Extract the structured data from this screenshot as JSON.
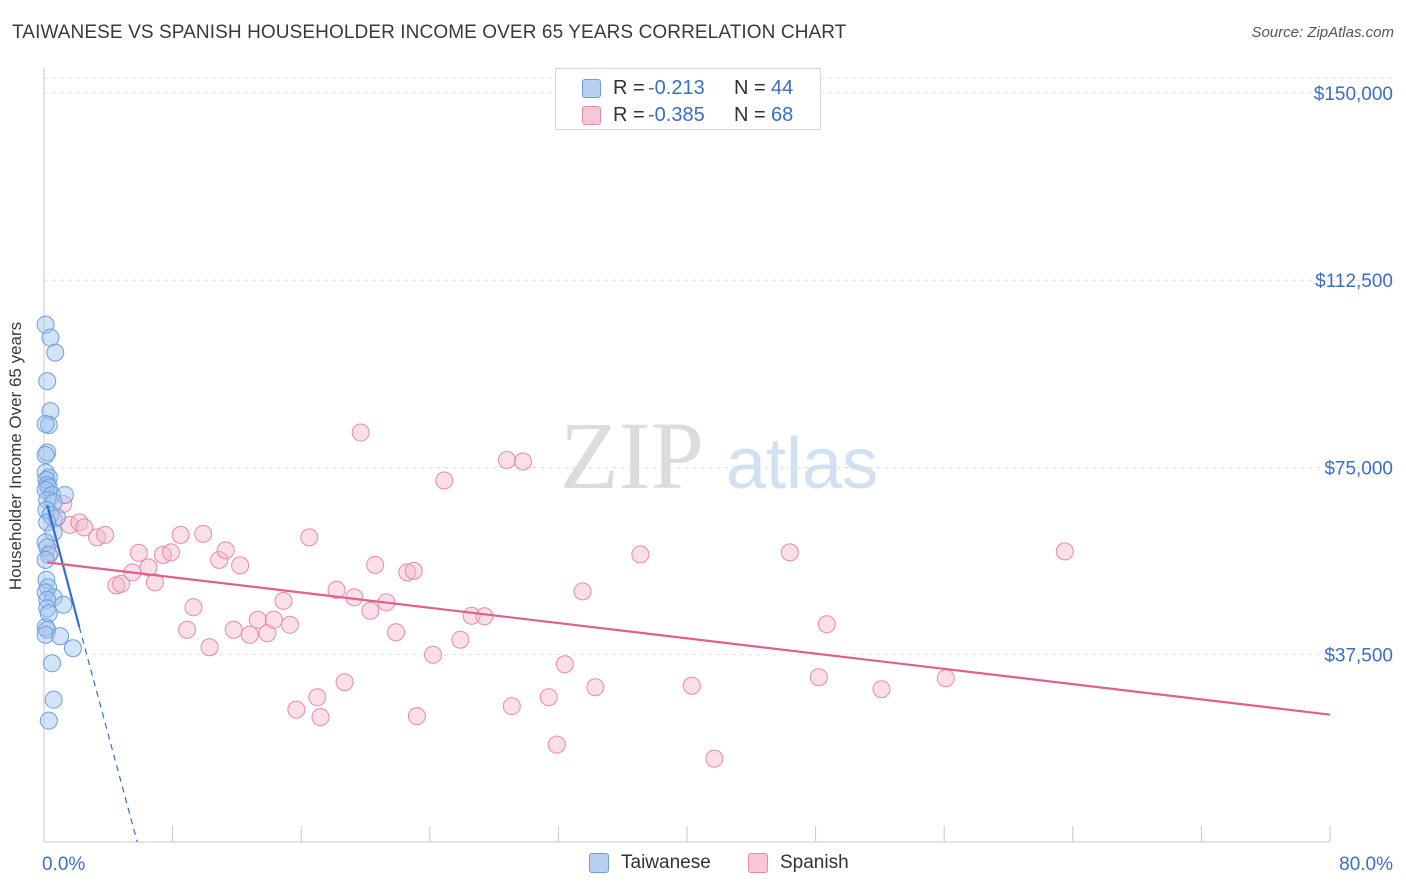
{
  "title": "TAIWANESE VS SPANISH HOUSEHOLDER INCOME OVER 65 YEARS CORRELATION CHART",
  "source": "Source: ZipAtlas.com",
  "watermark": {
    "part1": "ZIP",
    "part2": "atlas"
  },
  "legend_stats": [
    {
      "r_label": "R =",
      "r_value": "-0.213",
      "n_label": "N =",
      "n_value": "44",
      "fill": "#b8d0f2",
      "stroke": "#6e9ee0"
    },
    {
      "r_label": "R =",
      "r_value": "-0.385",
      "n_label": "N =",
      "n_value": "68",
      "fill": "#f8c6d7",
      "stroke": "#e88aaa"
    }
  ],
  "legend_bottom": [
    {
      "label": "Taiwanese",
      "fill": "#b8d0f2",
      "stroke": "#6e9ee0"
    },
    {
      "label": "Spanish",
      "fill": "#f8c6d7",
      "stroke": "#e88aaa"
    }
  ],
  "chart_data": {
    "type": "scatter",
    "title": "TAIWANESE VS SPANISH HOUSEHOLDER INCOME OVER 65 YEARS CORRELATION CHART",
    "xlabel": "",
    "ylabel": "Householder Income Over 65 years",
    "xlim": [
      0,
      80
    ],
    "ylim": [
      0,
      153000
    ],
    "x_tick_labels": [
      "0.0%",
      "80.0%"
    ],
    "y_ticks": [
      37500,
      75000,
      112500,
      150000
    ],
    "y_tick_labels": [
      "$37,500",
      "$75,000",
      "$112,500",
      "$150,000"
    ],
    "grid": true,
    "series": [
      {
        "name": "Taiwanese",
        "color": "#6e9ee0",
        "fill": "rgba(160,195,240,0.45)",
        "trend": {
          "x0": 0.2,
          "y0": 67500,
          "x1": 2.2,
          "y1": 43000,
          "ext_x1": 5.8,
          "ext_y1": 0
        },
        "trend_color": "#2f6fd0",
        "points": [
          {
            "x": 0.1,
            "y": 103600
          },
          {
            "x": 0.4,
            "y": 101000
          },
          {
            "x": 0.7,
            "y": 98000
          },
          {
            "x": 0.2,
            "y": 92300
          },
          {
            "x": 0.4,
            "y": 86300
          },
          {
            "x": 0.3,
            "y": 83500
          },
          {
            "x": 0.1,
            "y": 83700
          },
          {
            "x": 0.2,
            "y": 78000
          },
          {
            "x": 0.1,
            "y": 77500
          },
          {
            "x": 0.1,
            "y": 74000
          },
          {
            "x": 0.3,
            "y": 73000
          },
          {
            "x": 0.15,
            "y": 72500
          },
          {
            "x": 0.2,
            "y": 71500
          },
          {
            "x": 0.3,
            "y": 71000
          },
          {
            "x": 0.1,
            "y": 70500
          },
          {
            "x": 0.5,
            "y": 69500
          },
          {
            "x": 1.3,
            "y": 69500
          },
          {
            "x": 0.2,
            "y": 68500
          },
          {
            "x": 0.6,
            "y": 68000
          },
          {
            "x": 0.15,
            "y": 66500
          },
          {
            "x": 0.4,
            "y": 65500
          },
          {
            "x": 0.8,
            "y": 65000
          },
          {
            "x": 0.2,
            "y": 64000
          },
          {
            "x": 0.6,
            "y": 62000
          },
          {
            "x": 0.1,
            "y": 60000
          },
          {
            "x": 0.2,
            "y": 59000
          },
          {
            "x": 0.3,
            "y": 57500
          },
          {
            "x": 0.1,
            "y": 56500
          },
          {
            "x": 0.15,
            "y": 52500
          },
          {
            "x": 0.25,
            "y": 51000
          },
          {
            "x": 0.1,
            "y": 50000
          },
          {
            "x": 0.6,
            "y": 49000
          },
          {
            "x": 0.2,
            "y": 48500
          },
          {
            "x": 1.2,
            "y": 47500
          },
          {
            "x": 0.2,
            "y": 46800
          },
          {
            "x": 0.3,
            "y": 45800
          },
          {
            "x": 0.1,
            "y": 43000
          },
          {
            "x": 0.2,
            "y": 42500
          },
          {
            "x": 0.1,
            "y": 41500
          },
          {
            "x": 1.0,
            "y": 41200
          },
          {
            "x": 1.8,
            "y": 38800
          },
          {
            "x": 0.5,
            "y": 35800
          },
          {
            "x": 0.6,
            "y": 28500
          },
          {
            "x": 0.3,
            "y": 24300
          }
        ]
      },
      {
        "name": "Spanish",
        "color": "#e88aaa",
        "fill": "rgba(245,185,205,0.45)",
        "trend": {
          "x0": 0.2,
          "y0": 56000,
          "x1": 80,
          "y1": 25500
        },
        "trend_color": "#e0608c",
        "points": [
          {
            "x": 0.4,
            "y": 58000
          },
          {
            "x": 0.6,
            "y": 64700
          },
          {
            "x": 1.2,
            "y": 67700
          },
          {
            "x": 1.6,
            "y": 63500
          },
          {
            "x": 2.2,
            "y": 64000
          },
          {
            "x": 2.5,
            "y": 63000
          },
          {
            "x": 3.3,
            "y": 61000
          },
          {
            "x": 3.8,
            "y": 61500
          },
          {
            "x": 4.5,
            "y": 51400
          },
          {
            "x": 4.8,
            "y": 51700
          },
          {
            "x": 5.5,
            "y": 54000
          },
          {
            "x": 5.9,
            "y": 57900
          },
          {
            "x": 6.5,
            "y": 55000
          },
          {
            "x": 6.9,
            "y": 52000
          },
          {
            "x": 7.4,
            "y": 57500
          },
          {
            "x": 7.9,
            "y": 58000
          },
          {
            "x": 8.5,
            "y": 61500
          },
          {
            "x": 8.9,
            "y": 42500
          },
          {
            "x": 9.3,
            "y": 47000
          },
          {
            "x": 9.9,
            "y": 61700
          },
          {
            "x": 10.3,
            "y": 39000
          },
          {
            "x": 10.9,
            "y": 56500
          },
          {
            "x": 11.3,
            "y": 58400
          },
          {
            "x": 11.8,
            "y": 42500
          },
          {
            "x": 12.2,
            "y": 55400
          },
          {
            "x": 12.8,
            "y": 41500
          },
          {
            "x": 13.3,
            "y": 44500
          },
          {
            "x": 13.9,
            "y": 41800
          },
          {
            "x": 14.3,
            "y": 44500
          },
          {
            "x": 14.9,
            "y": 48300
          },
          {
            "x": 15.3,
            "y": 43500
          },
          {
            "x": 15.7,
            "y": 26500
          },
          {
            "x": 16.5,
            "y": 61000
          },
          {
            "x": 17.0,
            "y": 29000
          },
          {
            "x": 17.2,
            "y": 25000
          },
          {
            "x": 18.2,
            "y": 50500
          },
          {
            "x": 18.7,
            "y": 32000
          },
          {
            "x": 19.3,
            "y": 49000
          },
          {
            "x": 19.7,
            "y": 82000
          },
          {
            "x": 20.3,
            "y": 46300
          },
          {
            "x": 20.6,
            "y": 55500
          },
          {
            "x": 21.3,
            "y": 48000
          },
          {
            "x": 21.9,
            "y": 42000
          },
          {
            "x": 22.6,
            "y": 54000
          },
          {
            "x": 23.0,
            "y": 54300
          },
          {
            "x": 23.2,
            "y": 25200
          },
          {
            "x": 24.2,
            "y": 37500
          },
          {
            "x": 24.9,
            "y": 72400
          },
          {
            "x": 25.9,
            "y": 40500
          },
          {
            "x": 26.6,
            "y": 45300
          },
          {
            "x": 27.4,
            "y": 45200
          },
          {
            "x": 28.8,
            "y": 76500
          },
          {
            "x": 29.1,
            "y": 27200
          },
          {
            "x": 29.8,
            "y": 76200
          },
          {
            "x": 31.4,
            "y": 29000
          },
          {
            "x": 31.9,
            "y": 19500
          },
          {
            "x": 32.4,
            "y": 35600
          },
          {
            "x": 33.5,
            "y": 50200
          },
          {
            "x": 34.3,
            "y": 31000
          },
          {
            "x": 37.1,
            "y": 57600
          },
          {
            "x": 40.3,
            "y": 31300
          },
          {
            "x": 41.7,
            "y": 16700
          },
          {
            "x": 46.4,
            "y": 58000
          },
          {
            "x": 48.2,
            "y": 33000
          },
          {
            "x": 48.7,
            "y": 43600
          },
          {
            "x": 52.1,
            "y": 30600
          },
          {
            "x": 56.1,
            "y": 32800
          },
          {
            "x": 63.5,
            "y": 58200
          }
        ]
      }
    ]
  }
}
